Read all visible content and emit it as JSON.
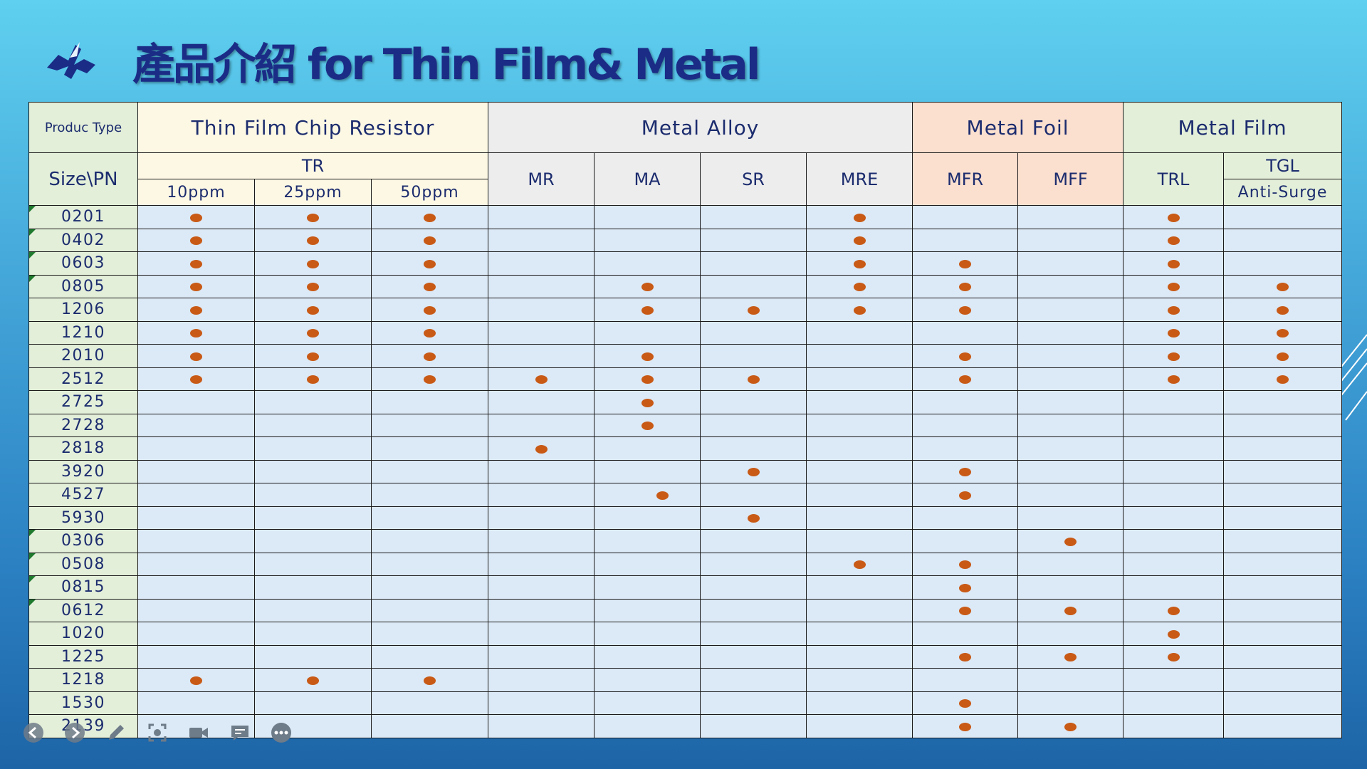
{
  "title": "產品介紹  for Thin Film& Metal",
  "header": {
    "corner": "Produc Type",
    "size_pn": "Size\\PN",
    "groups": [
      "Thin Film Chip Resistor",
      "Metal Alloy",
      "Metal Foil",
      "Metal Film"
    ],
    "tr": "TR",
    "tr_sub": [
      "10ppm",
      "25ppm",
      "50ppm"
    ],
    "alloy": [
      "MR",
      "MA",
      "SR",
      "MRE"
    ],
    "foil": [
      "MFR",
      "MFF"
    ],
    "film_trl": "TRL",
    "film_tgl": "TGL",
    "film_tgl_sub": "Anti-Surge"
  },
  "columns": [
    "10ppm",
    "25ppm",
    "50ppm",
    "MR",
    "MA",
    "SR",
    "MRE",
    "MFR",
    "MFF",
    "TRL",
    "TGL"
  ],
  "rows": [
    {
      "size": "0201",
      "marks": [
        1,
        1,
        1,
        0,
        0,
        0,
        1,
        0,
        0,
        1,
        0
      ]
    },
    {
      "size": "0402",
      "marks": [
        1,
        1,
        1,
        0,
        0,
        0,
        1,
        0,
        0,
        1,
        0
      ]
    },
    {
      "size": "0603",
      "marks": [
        1,
        1,
        1,
        0,
        0,
        0,
        1,
        1,
        0,
        1,
        0
      ]
    },
    {
      "size": "0805",
      "marks": [
        1,
        1,
        1,
        0,
        1,
        0,
        1,
        1,
        0,
        1,
        1
      ]
    },
    {
      "size": "1206",
      "marks": [
        1,
        1,
        1,
        0,
        1,
        1,
        1,
        1,
        0,
        1,
        1
      ]
    },
    {
      "size": "1210",
      "marks": [
        1,
        1,
        1,
        0,
        0,
        0,
        0,
        0,
        0,
        1,
        1
      ]
    },
    {
      "size": "2010",
      "marks": [
        1,
        1,
        1,
        0,
        1,
        0,
        0,
        1,
        0,
        1,
        1
      ]
    },
    {
      "size": "2512",
      "marks": [
        1,
        1,
        1,
        1,
        1,
        1,
        0,
        1,
        0,
        1,
        1
      ]
    },
    {
      "size": "2725",
      "marks": [
        0,
        0,
        0,
        0,
        1,
        0,
        0,
        0,
        0,
        0,
        0
      ]
    },
    {
      "size": "2728",
      "marks": [
        0,
        0,
        0,
        0,
        1,
        0,
        0,
        0,
        0,
        0,
        0
      ]
    },
    {
      "size": "2818",
      "marks": [
        0,
        0,
        0,
        1,
        0,
        0,
        0,
        0,
        0,
        0,
        0
      ]
    },
    {
      "size": "3920",
      "marks": [
        0,
        0,
        0,
        0,
        0,
        1,
        0,
        1,
        0,
        0,
        0
      ]
    },
    {
      "size": "4527",
      "marks": [
        0,
        0,
        0,
        0,
        1,
        0,
        0,
        1,
        0,
        0,
        0
      ]
    },
    {
      "size": "5930",
      "marks": [
        0,
        0,
        0,
        0,
        0,
        1,
        0,
        0,
        0,
        0,
        0
      ]
    },
    {
      "size": "0306",
      "marks": [
        0,
        0,
        0,
        0,
        0,
        0,
        0,
        0,
        1,
        0,
        0
      ]
    },
    {
      "size": "0508",
      "marks": [
        0,
        0,
        0,
        0,
        0,
        0,
        1,
        1,
        0,
        0,
        0
      ]
    },
    {
      "size": "0815",
      "marks": [
        0,
        0,
        0,
        0,
        0,
        0,
        0,
        1,
        0,
        0,
        0
      ]
    },
    {
      "size": "0612",
      "marks": [
        0,
        0,
        0,
        0,
        0,
        0,
        0,
        1,
        1,
        1,
        0
      ]
    },
    {
      "size": "1020",
      "marks": [
        0,
        0,
        0,
        0,
        0,
        0,
        0,
        0,
        0,
        1,
        0
      ]
    },
    {
      "size": "1225",
      "marks": [
        0,
        0,
        0,
        0,
        0,
        0,
        0,
        1,
        1,
        1,
        0
      ]
    },
    {
      "size": "1218",
      "marks": [
        1,
        1,
        1,
        0,
        0,
        0,
        0,
        0,
        0,
        0,
        0
      ]
    },
    {
      "size": "1530",
      "marks": [
        0,
        0,
        0,
        0,
        0,
        0,
        0,
        1,
        0,
        0,
        0
      ]
    },
    {
      "size": "2139",
      "marks": [
        0,
        0,
        0,
        0,
        0,
        0,
        0,
        1,
        1,
        0,
        0
      ]
    }
  ],
  "toolbar": [
    "prev-icon",
    "next-icon",
    "pen-icon",
    "focus-icon",
    "camera-icon",
    "subtitles-icon",
    "more-icon"
  ],
  "colors": {
    "title": "#1b2c86",
    "dot": "#c85a16",
    "grid": "#dce9f6",
    "size_col": "#e3efd9",
    "foil": "#fbe0cf",
    "tfcr": "#fdf8e4",
    "alloy": "#ededed"
  }
}
